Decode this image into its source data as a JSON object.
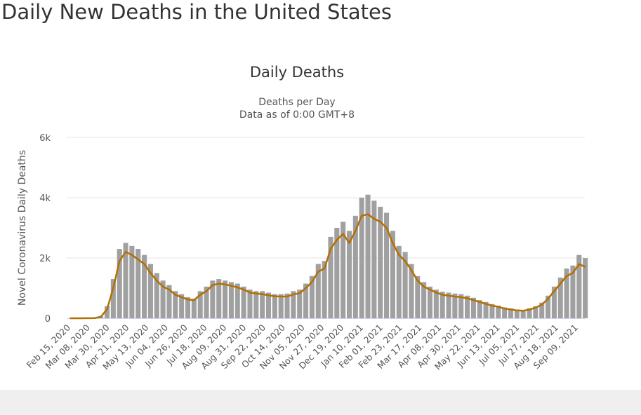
{
  "page": {
    "title": "Daily New Deaths in the United States"
  },
  "chart_data": {
    "type": "bar",
    "title": "Daily Deaths",
    "subtitle": [
      "Deaths per Day",
      "Data as of 0:00 GMT+8"
    ],
    "xlabel": "",
    "ylabel": "Novel Coronavirus Daily Deaths",
    "ylim": [
      0,
      6000
    ],
    "yticks": [
      {
        "value": 0,
        "label": "0"
      },
      {
        "value": 2000,
        "label": "2k"
      },
      {
        "value": 4000,
        "label": "4k"
      },
      {
        "value": 6000,
        "label": "6k"
      }
    ],
    "xrange": [
      "2020-02-15",
      "2021-09-21"
    ],
    "xticks": [
      "Feb 15, 2020",
      "Mar 08, 2020",
      "Mar 30, 2020",
      "Apr 21, 2020",
      "May 13, 2020",
      "Jun 04, 2020",
      "Jun 26, 2020",
      "Jul 18, 2020",
      "Aug 09, 2020",
      "Aug 31, 2020",
      "Sep 22, 2020",
      "Oct 14, 2020",
      "Nov 05, 2020",
      "Nov 27, 2020",
      "Dec 19, 2020",
      "Jan 10, 2021",
      "Feb 01, 2021",
      "Feb 23, 2021",
      "Mar 17, 2021",
      "Apr 08, 2021",
      "Apr 30, 2021",
      "May 22, 2021",
      "Jun 13, 2021",
      "Jul 05, 2021",
      "Jul 27, 2021",
      "Aug 18, 2021",
      "Sep 09, 2021"
    ],
    "xtick_start": "2020-02-15",
    "xtick_interval_days": 22,
    "grid": true,
    "legend": "none",
    "colors": {
      "bars": "#a0a0a0",
      "moving_average": "#b36f00",
      "grid": "#e6e6e6",
      "axis": "#ccd6eb"
    },
    "series_start": "2020-02-15",
    "series_interval_days": 7,
    "series": [
      {
        "kind": "bar",
        "values": [
          0,
          0,
          0,
          2,
          10,
          60,
          400,
          1300,
          2300,
          2500,
          2400,
          2300,
          2100,
          1800,
          1500,
          1250,
          1100,
          900,
          800,
          700,
          650,
          900,
          1050,
          1250,
          1300,
          1250,
          1200,
          1150,
          1050,
          950,
          900,
          900,
          850,
          800,
          800,
          820,
          900,
          950,
          1150,
          1400,
          1800,
          1900,
          2700,
          3000,
          3200,
          2900,
          3400,
          4000,
          4100,
          3900,
          3700,
          3500,
          2900,
          2400,
          2200,
          1800,
          1400,
          1200,
          1050,
          950,
          880,
          850,
          820,
          800,
          750,
          680,
          600,
          540,
          470,
          420,
          360,
          330,
          290,
          280,
          330,
          400,
          520,
          750,
          1050,
          1350,
          1650,
          1750,
          2100,
          2000
        ]
      },
      {
        "kind": "line",
        "name": "",
        "values": [
          0,
          0,
          0,
          2,
          8,
          50,
          300,
          1000,
          1900,
          2200,
          2100,
          1950,
          1800,
          1500,
          1250,
          1050,
          950,
          780,
          700,
          620,
          600,
          780,
          900,
          1100,
          1150,
          1120,
          1080,
          1020,
          950,
          850,
          820,
          800,
          760,
          730,
          720,
          720,
          790,
          830,
          1000,
          1200,
          1550,
          1650,
          2300,
          2600,
          2800,
          2500,
          2900,
          3400,
          3450,
          3300,
          3200,
          3000,
          2500,
          2100,
          1900,
          1600,
          1250,
          1050,
          950,
          850,
          780,
          750,
          720,
          700,
          660,
          600,
          540,
          480,
          420,
          380,
          320,
          290,
          260,
          250,
          290,
          350,
          450,
          650,
          900,
          1150,
          1400,
          1500,
          1800,
          1700
        ]
      }
    ]
  }
}
